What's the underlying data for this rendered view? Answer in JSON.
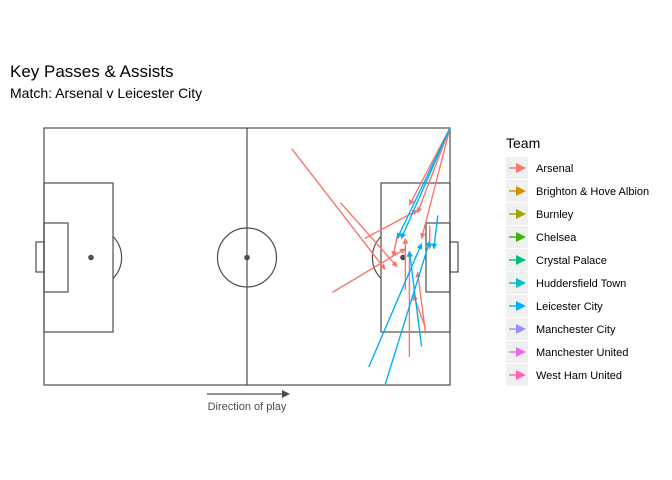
{
  "title": "Key Passes & Assists",
  "subtitle": "Match: Arsenal v Leicester City",
  "direction_label": "Direction of play",
  "legend": {
    "title": "Team",
    "items": [
      {
        "label": "Arsenal",
        "color": "#F8766D"
      },
      {
        "label": "Brighton & Hove Albion",
        "color": "#D89000"
      },
      {
        "label": "Burnley",
        "color": "#A3A500"
      },
      {
        "label": "Chelsea",
        "color": "#39B600"
      },
      {
        "label": "Crystal Palace",
        "color": "#00BF7D"
      },
      {
        "label": "Huddersfield Town",
        "color": "#00BFC4"
      },
      {
        "label": "Leicester City",
        "color": "#00B0F6"
      },
      {
        "label": "Manchester City",
        "color": "#9590FF"
      },
      {
        "label": "Manchester United",
        "color": "#E76BF3"
      },
      {
        "label": "West Ham United",
        "color": "#FF62BC"
      }
    ]
  },
  "chart_data": {
    "type": "pass-map",
    "title": "Key Passes & Assists",
    "subtitle": "Match: Arsenal v Leicester City",
    "x_range": [
      0,
      100
    ],
    "y_range": [
      0,
      100
    ],
    "grid": false,
    "legend_position": "right",
    "passes": [
      {
        "team": "Arsenal",
        "x": 61,
        "y": 92,
        "end_x": 84,
        "end_y": 45
      },
      {
        "team": "Arsenal",
        "x": 100,
        "y": 100,
        "end_x": 90,
        "end_y": 70
      },
      {
        "team": "Arsenal",
        "x": 100,
        "y": 100,
        "end_x": 92,
        "end_y": 67
      },
      {
        "team": "Arsenal",
        "x": 73,
        "y": 71,
        "end_x": 87,
        "end_y": 46
      },
      {
        "team": "Arsenal",
        "x": 79,
        "y": 57,
        "end_x": 92,
        "end_y": 68
      },
      {
        "team": "Arsenal",
        "x": 71,
        "y": 36,
        "end_x": 89,
        "end_y": 53
      },
      {
        "team": "Arsenal",
        "x": 100,
        "y": 100,
        "end_x": 93,
        "end_y": 57
      },
      {
        "team": "Arsenal",
        "x": 90,
        "y": 11,
        "end_x": 90,
        "end_y": 52
      },
      {
        "team": "Arsenal",
        "x": 89,
        "y": 37,
        "end_x": 89,
        "end_y": 57
      },
      {
        "team": "Arsenal",
        "x": 94,
        "y": 20,
        "end_x": 92,
        "end_y": 44
      },
      {
        "team": "Arsenal",
        "x": 94,
        "y": 22,
        "end_x": 91,
        "end_y": 35
      },
      {
        "team": "Arsenal",
        "x": 87,
        "y": 58,
        "end_x": 86,
        "end_y": 50
      },
      {
        "team": "Arsenal",
        "x": 95,
        "y": 62,
        "end_x": 95,
        "end_y": 53
      },
      {
        "team": "Leicester City",
        "x": 100,
        "y": 100,
        "end_x": 88,
        "end_y": 57
      },
      {
        "team": "Leicester City",
        "x": 80,
        "y": 7,
        "end_x": 93,
        "end_y": 55
      },
      {
        "team": "Leicester City",
        "x": 84,
        "y": 0,
        "end_x": 95,
        "end_y": 56
      },
      {
        "team": "Leicester City",
        "x": 93,
        "y": 15,
        "end_x": 90,
        "end_y": 52
      },
      {
        "team": "Leicester City",
        "x": 97,
        "y": 66,
        "end_x": 96,
        "end_y": 53
      },
      {
        "team": "Leicester City",
        "x": 100,
        "y": 100,
        "end_x": 87,
        "end_y": 57
      }
    ]
  }
}
